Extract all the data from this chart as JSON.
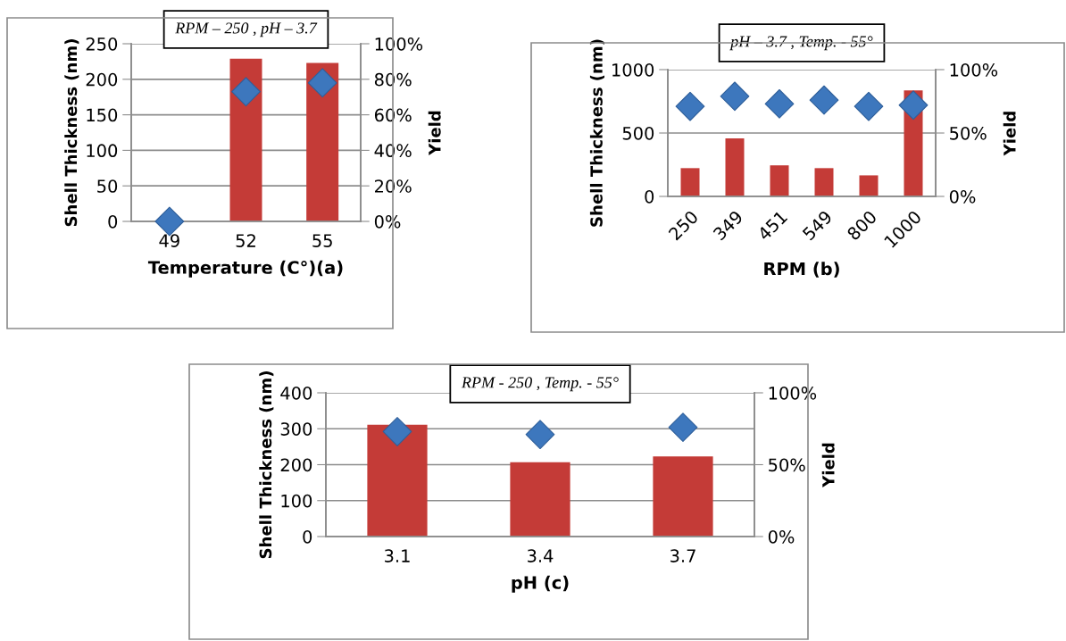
{
  "chart_data": [
    {
      "type": "bar",
      "title": "RPM – 250 , pH – 3.7",
      "xlabel": "Temperature (C°)(a)",
      "ylabel": "Shell Thickness (nm)",
      "y2label": "Yield",
      "categories": [
        "49",
        "52",
        "55"
      ],
      "series": [
        {
          "color": "#c43b37",
          "values": [
            null,
            229,
            223
          ]
        },
        {
          "type": "scatter",
          "axis": "y2",
          "color": "#3d77bd",
          "marker": "diamond",
          "values": [
            0,
            73,
            78
          ]
        }
      ],
      "ylim": [
        0,
        250
      ],
      "yticks": [
        0,
        50,
        100,
        150,
        200,
        250
      ],
      "y2lim": [
        0,
        100
      ],
      "y2ticks": [
        {
          "value": 0,
          "label": "0%"
        },
        {
          "value": 20,
          "label": "20%"
        },
        {
          "value": 40,
          "label": "40%"
        },
        {
          "value": 60,
          "label": "60%"
        },
        {
          "value": 80,
          "label": "80%"
        },
        {
          "value": 100,
          "label": "100%"
        }
      ],
      "grid": "y"
    },
    {
      "type": "bar",
      "title": "pH – 3.7 , Temp. - 55°",
      "xlabel": "RPM (b)",
      "ylabel": "Shell Thickness (nm)",
      "y2label": "Yield",
      "categories": [
        "250",
        "349",
        "451",
        "549",
        "800",
        "1000"
      ],
      "series": [
        {
          "color": "#c43b37",
          "values": [
            223,
            457,
            245,
            223,
            166,
            837
          ]
        },
        {
          "type": "scatter",
          "axis": "y2",
          "color": "#3d77bd",
          "marker": "diamond",
          "values": [
            71,
            79,
            73,
            76,
            71,
            72
          ]
        }
      ],
      "ylim": [
        0,
        1000
      ],
      "yticks": [
        0,
        500,
        1000
      ],
      "y2lim": [
        0,
        100
      ],
      "y2ticks": [
        {
          "value": 0,
          "label": "0%"
        },
        {
          "value": 50,
          "label": "50%"
        },
        {
          "value": 100,
          "label": "100%"
        }
      ],
      "grid": "y"
    },
    {
      "type": "bar",
      "title": "RPM - 250 , Temp. - 55°",
      "xlabel": "pH (c)",
      "ylabel": "Shell Thickness (nm)",
      "y2label": "Yield",
      "categories": [
        "3.1",
        "3.4",
        "3.7"
      ],
      "series": [
        {
          "color": "#c43b37",
          "values": [
            311,
            207,
            223
          ]
        },
        {
          "type": "scatter",
          "axis": "y2",
          "color": "#3d77bd",
          "marker": "diamond",
          "values": [
            73,
            71,
            76
          ]
        }
      ],
      "ylim": [
        0,
        400
      ],
      "yticks": [
        0,
        100,
        200,
        300,
        400
      ],
      "y2lim": [
        0,
        100
      ],
      "y2ticks": [
        {
          "value": 0,
          "label": "0%"
        },
        {
          "value": 50,
          "label": "50%"
        },
        {
          "value": 100,
          "label": "100%"
        }
      ],
      "grid": "y"
    }
  ]
}
